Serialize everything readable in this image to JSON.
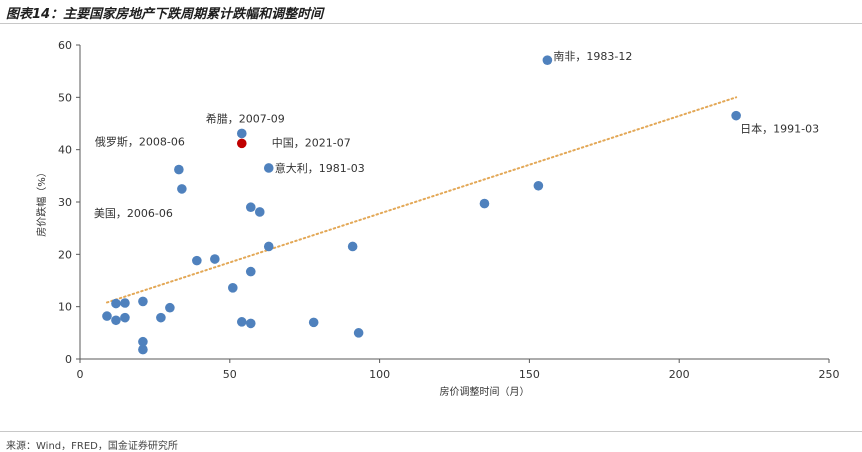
{
  "header": {
    "title": "图表14：主要国家房地产下跌周期累计跌幅和调整时间"
  },
  "footer": {
    "source": "来源：Wind，FRED，国金证券研究所"
  },
  "chart_data": {
    "type": "scatter",
    "xlabel": "房价调整时间（月）",
    "ylabel": "房价跌幅（%）",
    "xlim": [
      0,
      250
    ],
    "ylim": [
      0,
      60
    ],
    "xticks": [
      0,
      50,
      100,
      150,
      200,
      250
    ],
    "yticks": [
      0,
      10,
      20,
      30,
      40,
      50,
      60
    ],
    "grid": false,
    "colors": {
      "point": "#4f81bd",
      "highlight": "#c00000",
      "trendline": "#e3a857"
    },
    "trendline": {
      "style": "dotted",
      "from": [
        9,
        10.8
      ],
      "to": [
        219,
        50
      ]
    },
    "points": [
      {
        "x": 9,
        "y": 8.2
      },
      {
        "x": 12,
        "y": 10.6
      },
      {
        "x": 12,
        "y": 7.4
      },
      {
        "x": 15,
        "y": 10.7
      },
      {
        "x": 15,
        "y": 7.9
      },
      {
        "x": 21,
        "y": 11.0
      },
      {
        "x": 21,
        "y": 3.3
      },
      {
        "x": 21,
        "y": 1.8
      },
      {
        "x": 27,
        "y": 7.9
      },
      {
        "x": 30,
        "y": 9.8
      },
      {
        "x": 33,
        "y": 36.2,
        "label": "俄罗斯，2008-06"
      },
      {
        "x": 34,
        "y": 32.5,
        "label": "美国，2006-06"
      },
      {
        "x": 39,
        "y": 18.8
      },
      {
        "x": 45,
        "y": 19.1
      },
      {
        "x": 51,
        "y": 13.6
      },
      {
        "x": 54,
        "y": 43.1,
        "label": "希腊，2007-09"
      },
      {
        "x": 54,
        "y": 41.2,
        "label": "中国，2021-07",
        "highlight": true
      },
      {
        "x": 54,
        "y": 7.1
      },
      {
        "x": 57,
        "y": 29.0
      },
      {
        "x": 57,
        "y": 16.7
      },
      {
        "x": 57,
        "y": 6.8
      },
      {
        "x": 60,
        "y": 28.1
      },
      {
        "x": 63,
        "y": 36.5,
        "label": "意大利，1981-03"
      },
      {
        "x": 63,
        "y": 21.5
      },
      {
        "x": 78,
        "y": 7.0
      },
      {
        "x": 91,
        "y": 21.5
      },
      {
        "x": 93,
        "y": 5.0
      },
      {
        "x": 135,
        "y": 29.7
      },
      {
        "x": 153,
        "y": 33.1
      },
      {
        "x": 156,
        "y": 57.1,
        "label": "南非，1983-12"
      },
      {
        "x": 219,
        "y": 46.5,
        "label": "日本，1991-03"
      }
    ]
  }
}
